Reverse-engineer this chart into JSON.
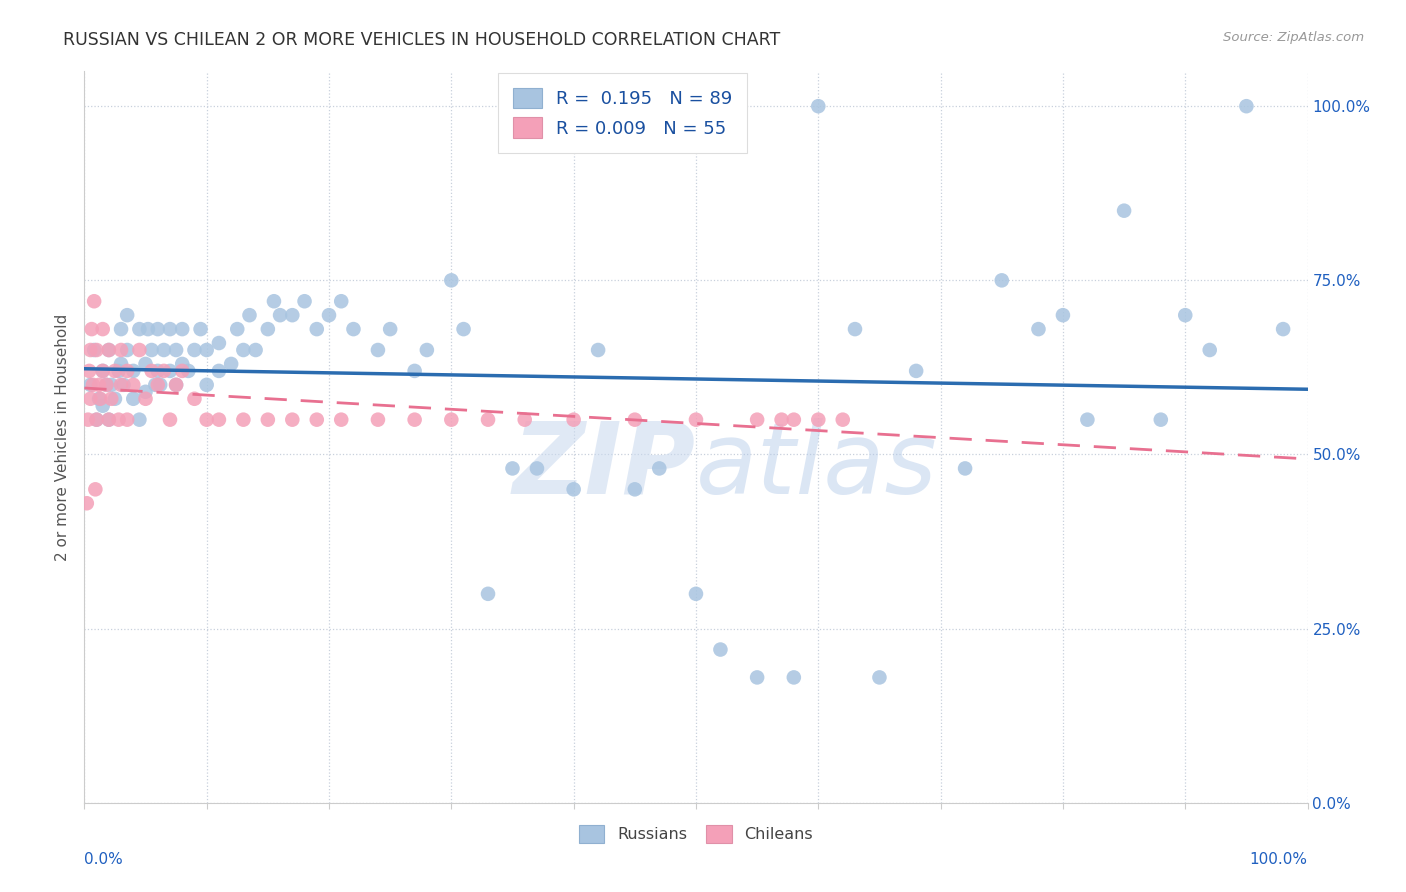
{
  "title": "RUSSIAN VS CHILEAN 2 OR MORE VEHICLES IN HOUSEHOLD CORRELATION CHART",
  "source": "Source: ZipAtlas.com",
  "ylabel": "2 or more Vehicles in Household",
  "watermark_zip": "ZIP",
  "watermark_atlas": "atlas",
  "legend_r_russian": "R =  0.195",
  "legend_n_russian": "N = 89",
  "legend_r_chilean": "R = 0.009",
  "legend_n_chilean": "N = 55",
  "russian_color": "#a8c4e0",
  "chilean_color": "#f4a0b8",
  "trendline_russian_color": "#2B6CB0",
  "trendline_chilean_color": "#e87090",
  "background_color": "#ffffff",
  "ytick_labels": [
    "0.0%",
    "25.0%",
    "50.0%",
    "75.0%",
    "100.0%"
  ],
  "ytick_values": [
    0,
    25,
    50,
    75,
    100
  ],
  "xtick_left_label": "0.0%",
  "xtick_right_label": "100.0%",
  "russian_x": [
    0.5,
    0.8,
    1.0,
    1.2,
    1.5,
    1.5,
    1.8,
    2.0,
    2.0,
    2.2,
    2.5,
    2.8,
    3.0,
    3.0,
    3.2,
    3.5,
    3.5,
    4.0,
    4.0,
    4.5,
    4.5,
    5.0,
    5.0,
    5.2,
    5.5,
    5.8,
    6.0,
    6.0,
    6.2,
    6.5,
    7.0,
    7.0,
    7.5,
    7.5,
    8.0,
    8.0,
    8.5,
    9.0,
    9.5,
    10.0,
    10.0,
    11.0,
    11.0,
    12.0,
    12.5,
    13.0,
    13.5,
    14.0,
    15.0,
    15.5,
    16.0,
    17.0,
    18.0,
    19.0,
    20.0,
    21.0,
    22.0,
    24.0,
    25.0,
    27.0,
    28.0,
    30.0,
    31.0,
    33.0,
    35.0,
    37.0,
    40.0,
    42.0,
    45.0,
    47.0,
    50.0,
    52.0,
    55.0,
    58.0,
    60.0,
    63.0,
    65.0,
    68.0,
    72.0,
    75.0,
    78.0,
    80.0,
    82.0,
    85.0,
    88.0,
    90.0,
    92.0,
    95.0,
    98.0
  ],
  "russian_y": [
    60,
    65,
    55,
    58,
    57,
    62,
    60,
    55,
    65,
    60,
    58,
    62,
    63,
    68,
    60,
    65,
    70,
    58,
    62,
    55,
    68,
    59,
    63,
    68,
    65,
    60,
    62,
    68,
    60,
    65,
    62,
    68,
    60,
    65,
    63,
    68,
    62,
    65,
    68,
    60,
    65,
    62,
    66,
    63,
    68,
    65,
    70,
    65,
    68,
    72,
    70,
    70,
    72,
    68,
    70,
    72,
    68,
    65,
    68,
    62,
    65,
    75,
    68,
    30,
    48,
    48,
    45,
    65,
    45,
    48,
    30,
    22,
    18,
    18,
    100,
    68,
    18,
    62,
    48,
    75,
    68,
    70,
    55,
    85,
    55,
    70,
    65,
    100,
    68
  ],
  "chilean_x": [
    0.2,
    0.3,
    0.4,
    0.5,
    0.5,
    0.6,
    0.7,
    0.8,
    0.9,
    1.0,
    1.0,
    1.2,
    1.3,
    1.5,
    1.5,
    1.8,
    2.0,
    2.0,
    2.2,
    2.5,
    2.8,
    3.0,
    3.0,
    3.5,
    3.5,
    4.0,
    4.5,
    5.0,
    5.5,
    6.0,
    6.5,
    7.0,
    7.5,
    8.0,
    9.0,
    10.0,
    11.0,
    13.0,
    15.0,
    17.0,
    19.0,
    21.0,
    24.0,
    27.0,
    30.0,
    33.0,
    36.0,
    40.0,
    45.0,
    50.0,
    55.0,
    57.0,
    58.0,
    60.0,
    62.0
  ],
  "chilean_y": [
    43,
    55,
    62,
    58,
    65,
    68,
    60,
    72,
    45,
    55,
    65,
    60,
    58,
    62,
    68,
    60,
    55,
    65,
    58,
    62,
    55,
    60,
    65,
    55,
    62,
    60,
    65,
    58,
    62,
    60,
    62,
    55,
    60,
    62,
    58,
    55,
    55,
    55,
    55,
    55,
    55,
    55,
    55,
    55,
    55,
    55,
    55,
    55,
    55,
    55,
    55,
    55,
    55,
    55,
    55
  ]
}
